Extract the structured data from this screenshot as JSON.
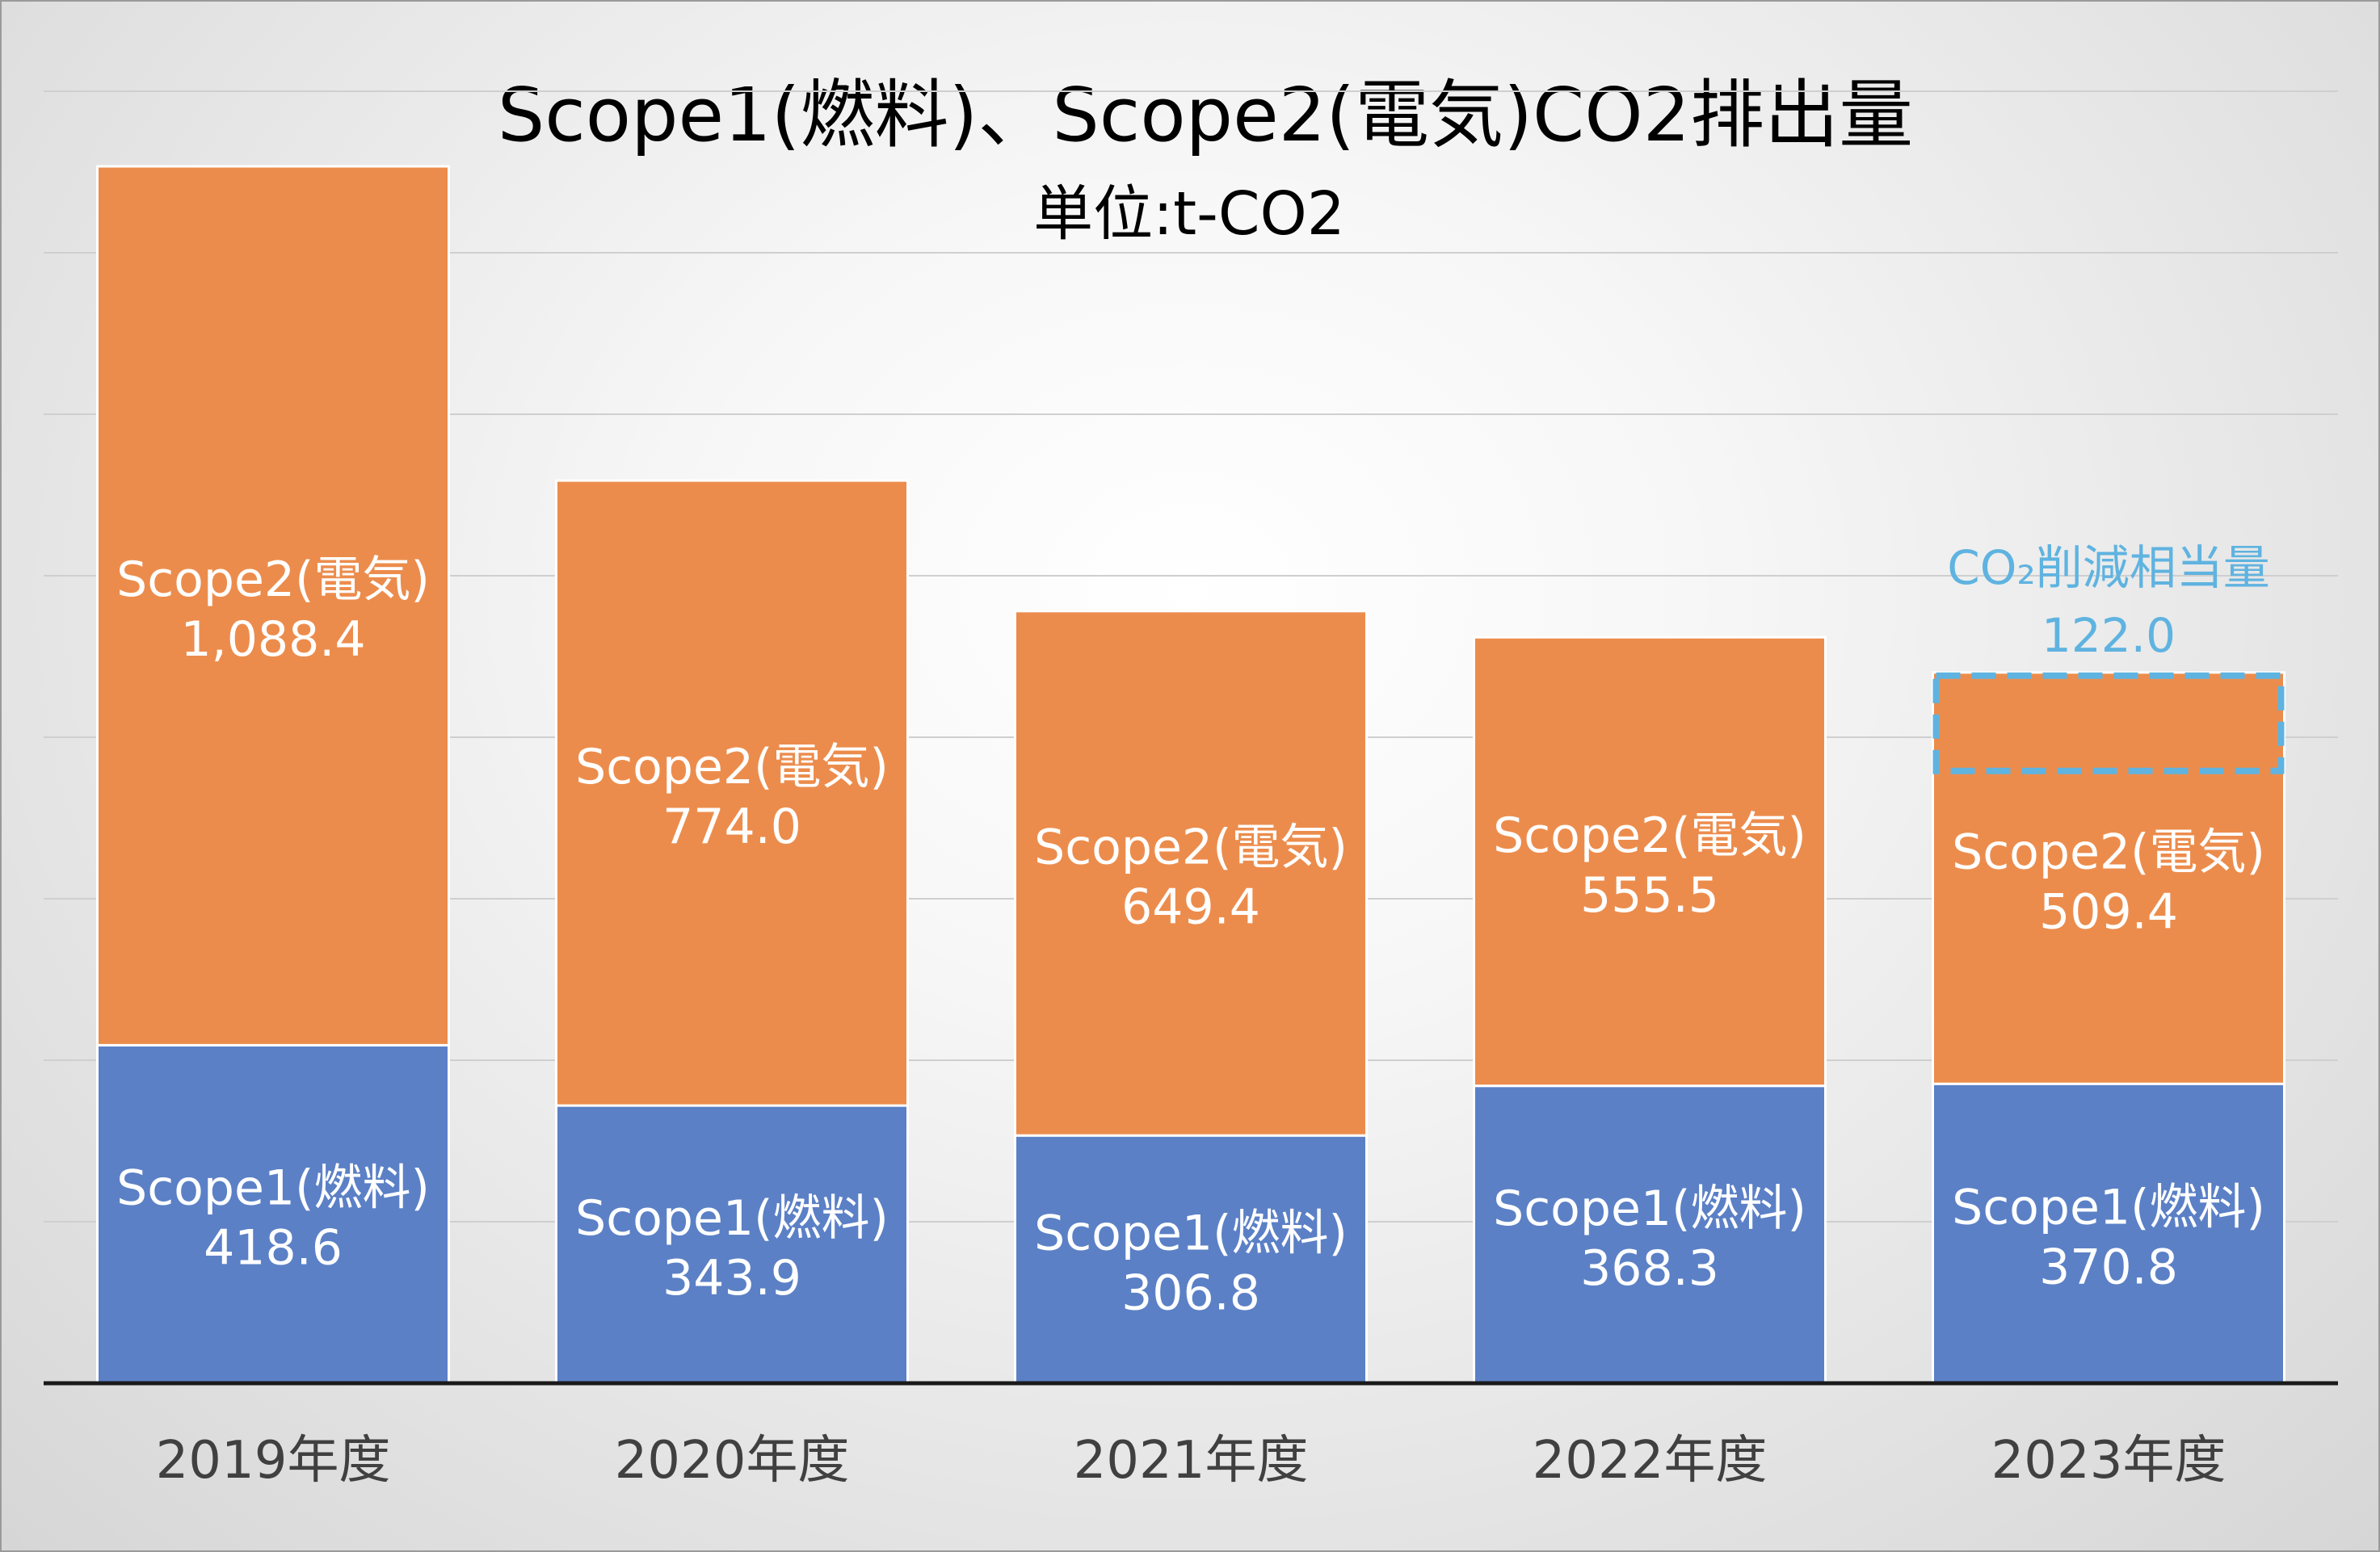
{
  "chart_data": {
    "type": "bar",
    "stacked": true,
    "title": "Scope1(燃料)、Scope2(電気)CO2排出量",
    "subtitle": "単位:t-CO2",
    "categories": [
      "2019年度",
      "2020年度",
      "2021年度",
      "2022年度",
      "2023年度"
    ],
    "series": [
      {
        "name": "Scope1(燃料)",
        "color": "#5b80c6",
        "values": [
          418.6,
          343.9,
          306.8,
          368.3,
          370.8
        ],
        "value_labels": [
          "418.6",
          "343.9",
          "306.8",
          "368.3",
          "370.8"
        ]
      },
      {
        "name": "Scope2(電気)",
        "color": "#ec8c4c",
        "values": [
          1088.4,
          774.0,
          649.4,
          555.5,
          509.4
        ],
        "value_labels": [
          "1,088.4",
          "774.0",
          "649.4",
          "555.5",
          "509.4"
        ]
      }
    ],
    "annotation": {
      "category": "2023年度",
      "label": "CO₂削減相当量",
      "value": 122.0,
      "value_label": "122.0",
      "color": "#5fb3e0"
    },
    "ylim": [
      0,
      1600
    ],
    "grid": true,
    "legend": "none",
    "xlabel": "",
    "ylabel": ""
  }
}
